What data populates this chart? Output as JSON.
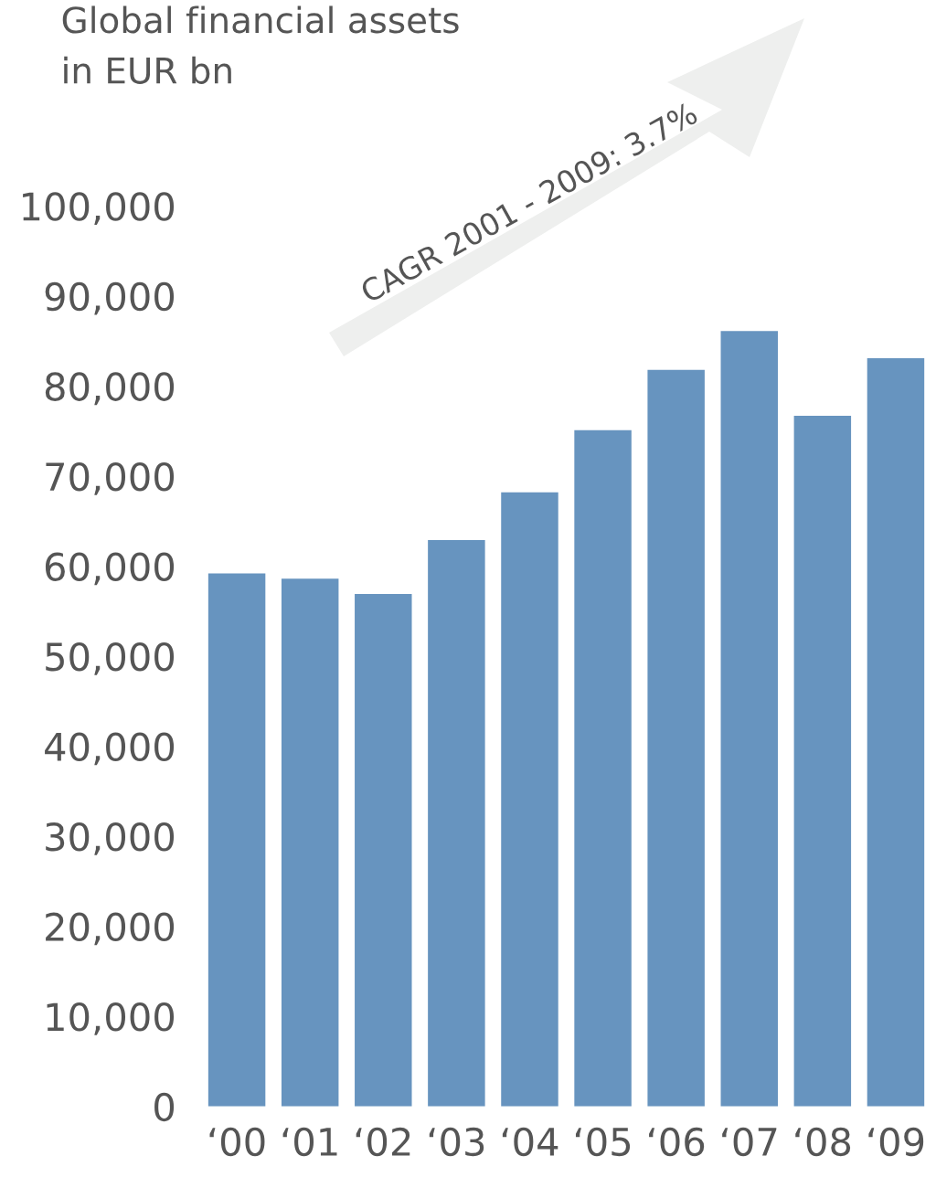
{
  "chart_data": {
    "type": "bar",
    "title": "Global financial assets\nin EUR bn",
    "categories": [
      "‘00",
      "‘01",
      "‘02",
      "‘03",
      "‘04",
      "‘05",
      "‘06",
      "‘07",
      "‘08",
      "‘09"
    ],
    "values": [
      59200,
      58600,
      56900,
      62900,
      68200,
      75100,
      81800,
      86100,
      76700,
      83100
    ],
    "color": "#6794bf",
    "ylim": [
      0,
      100000
    ],
    "yticks": [
      {
        "value": 0,
        "label": "0"
      },
      {
        "value": 10000,
        "label": "10,000"
      },
      {
        "value": 20000,
        "label": "20,000"
      },
      {
        "value": 30000,
        "label": "30,000"
      },
      {
        "value": 40000,
        "label": "40,000"
      },
      {
        "value": 50000,
        "label": "50,000"
      },
      {
        "value": 60000,
        "label": "60,000"
      },
      {
        "value": 70000,
        "label": "70,000"
      },
      {
        "value": 80000,
        "label": "80,000"
      },
      {
        "value": 90000,
        "label": "90,000"
      },
      {
        "value": 100000,
        "label": "100,000"
      }
    ],
    "annotations": [
      "CAGR 2001 - 2009: 3.7%"
    ],
    "grid": false
  }
}
